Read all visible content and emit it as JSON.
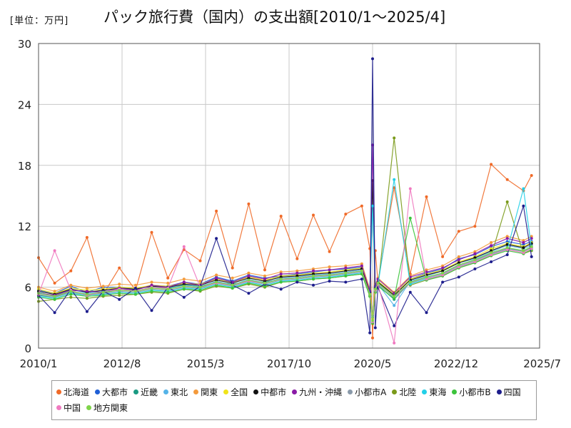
{
  "header": {
    "unit": "[単位：万円]",
    "title": "パック旅行費（国内）の支出額[2010/1～2025/4]"
  },
  "chart_data": {
    "type": "line",
    "ylim": [
      0,
      30
    ],
    "y_ticks": [
      0,
      6,
      12,
      18,
      24,
      30
    ],
    "y_tick_labels": [
      "0",
      "6",
      "12",
      "18",
      "24",
      "30"
    ],
    "x_range": [
      "2010-01",
      "2025-07"
    ],
    "x_ticks": [
      "2010-01",
      "2012-08",
      "2015-03",
      "2017-10",
      "2020-05",
      "2022-12",
      "2025-07"
    ],
    "x_tick_labels": [
      "2010/1",
      "2012/8",
      "2015/3",
      "2017/10",
      "2020/5",
      "2022/12",
      "2025/7"
    ],
    "grid": true,
    "legend_position": "bottom",
    "x": [
      "2010-01",
      "2010-07",
      "2011-01",
      "2011-07",
      "2012-01",
      "2012-07",
      "2013-01",
      "2013-07",
      "2014-01",
      "2014-07",
      "2015-01",
      "2015-07",
      "2016-01",
      "2016-07",
      "2017-01",
      "2017-07",
      "2018-01",
      "2018-07",
      "2019-01",
      "2019-07",
      "2020-01",
      "2020-04",
      "2020-05",
      "2020-06",
      "2020-07",
      "2021-01",
      "2021-07",
      "2022-01",
      "2022-07",
      "2023-01",
      "2023-07",
      "2024-01",
      "2024-07",
      "2025-01",
      "2025-04"
    ],
    "series": [
      {
        "name": "北海道",
        "color": "#f06a28",
        "values": [
          8.9,
          6.4,
          7.6,
          10.9,
          5.3,
          7.9,
          5.7,
          11.4,
          6.9,
          9.7,
          8.6,
          13.5,
          7.9,
          14.2,
          7.7,
          13.0,
          8.8,
          13.1,
          9.5,
          13.2,
          14.0,
          9.8,
          1.0,
          9.6,
          6.5,
          15.8,
          7.3,
          14.9,
          9.0,
          11.5,
          12.0,
          18.1,
          16.6,
          15.5,
          17.0
        ]
      },
      {
        "name": "大都市",
        "color": "#1f5fd6",
        "values": [
          5.7,
          5.4,
          6.1,
          5.5,
          6.0,
          6.0,
          5.8,
          6.2,
          6.1,
          6.5,
          6.3,
          7.0,
          6.6,
          7.2,
          6.9,
          7.1,
          7.3,
          7.5,
          7.7,
          7.8,
          8.0,
          5.5,
          3.2,
          5.8,
          6.5,
          5.2,
          6.8,
          7.4,
          7.8,
          8.8,
          9.2,
          10.0,
          10.5,
          10.2,
          10.5
        ]
      },
      {
        "name": "近畿",
        "color": "#1a9a82",
        "values": [
          5.2,
          5.0,
          5.6,
          5.3,
          5.4,
          5.8,
          5.6,
          6.0,
          5.9,
          6.2,
          6.1,
          6.5,
          6.3,
          6.6,
          6.5,
          6.8,
          6.9,
          7.1,
          7.2,
          7.4,
          7.6,
          5.2,
          3.0,
          5.6,
          6.2,
          4.8,
          6.5,
          7.0,
          7.4,
          8.2,
          8.7,
          9.3,
          9.8,
          9.6,
          9.9
        ]
      },
      {
        "name": "東北",
        "color": "#55b3e8",
        "values": [
          5.5,
          5.1,
          5.8,
          5.4,
          5.6,
          5.7,
          5.9,
          6.1,
          5.8,
          6.3,
          6.0,
          6.6,
          6.2,
          6.8,
          6.4,
          6.9,
          7.0,
          7.2,
          7.3,
          7.5,
          7.7,
          5.4,
          2.5,
          5.9,
          6.3,
          4.2,
          6.6,
          7.1,
          7.6,
          8.4,
          8.8,
          9.5,
          10.1,
          9.8,
          10.1
        ]
      },
      {
        "name": "関東",
        "color": "#f39a3c",
        "values": [
          6.0,
          5.6,
          6.2,
          5.9,
          6.1,
          6.3,
          6.2,
          6.5,
          6.4,
          6.8,
          6.6,
          7.2,
          6.9,
          7.4,
          7.1,
          7.5,
          7.6,
          7.8,
          8.0,
          8.1,
          8.3,
          5.8,
          2.8,
          6.2,
          6.9,
          5.5,
          7.1,
          7.7,
          8.1,
          9.0,
          9.5,
          10.4,
          11.0,
          10.6,
          11.0
        ]
      },
      {
        "name": "全国",
        "color": "#f0e41a",
        "values": [
          5.8,
          5.4,
          5.9,
          5.7,
          5.8,
          6.0,
          5.9,
          6.2,
          6.1,
          6.4,
          6.3,
          6.8,
          6.5,
          7.0,
          6.7,
          7.1,
          7.2,
          7.4,
          7.5,
          7.7,
          7.9,
          5.6,
          2.9,
          6.0,
          6.6,
          5.3,
          6.8,
          7.3,
          7.7,
          8.5,
          9.0,
          9.8,
          10.3,
          10.0,
          10.4
        ]
      },
      {
        "name": "中都市",
        "color": "#111111",
        "values": [
          5.6,
          5.3,
          5.8,
          5.5,
          5.7,
          5.9,
          5.8,
          6.1,
          6.0,
          6.3,
          6.2,
          6.7,
          6.4,
          6.9,
          6.6,
          7.0,
          7.1,
          7.3,
          7.4,
          7.6,
          7.8,
          5.5,
          16.5,
          5.9,
          6.5,
          5.2,
          6.7,
          7.2,
          7.6,
          8.4,
          8.9,
          9.6,
          10.2,
          9.9,
          10.3
        ]
      },
      {
        "name": "九州・沖縄",
        "color": "#8a1aa6",
        "values": [
          5.4,
          5.2,
          5.7,
          5.6,
          5.5,
          5.9,
          5.7,
          6.2,
          6.0,
          6.5,
          6.2,
          6.9,
          6.5,
          7.1,
          6.8,
          7.3,
          7.4,
          7.6,
          7.7,
          7.9,
          8.1,
          5.6,
          20.0,
          6.1,
          6.8,
          5.4,
          7.0,
          7.5,
          7.9,
          8.7,
          9.3,
          10.1,
          10.8,
          10.4,
          10.8
        ]
      },
      {
        "name": "小都市A",
        "color": "#8a9aaa",
        "values": [
          5.3,
          5.0,
          5.5,
          5.2,
          5.4,
          5.6,
          5.5,
          5.8,
          5.7,
          6.0,
          5.9,
          6.4,
          6.1,
          6.6,
          6.3,
          6.7,
          6.8,
          7.0,
          7.1,
          7.3,
          7.5,
          5.3,
          2.6,
          5.7,
          6.3,
          5.0,
          6.4,
          6.9,
          7.3,
          8.1,
          8.6,
          9.3,
          9.8,
          9.5,
          9.9
        ]
      },
      {
        "name": "北陸",
        "color": "#7a9a1a",
        "values": [
          4.6,
          4.8,
          5.0,
          4.9,
          5.1,
          5.2,
          5.3,
          5.5,
          5.4,
          5.8,
          5.6,
          6.1,
          5.9,
          6.3,
          6.0,
          6.5,
          6.6,
          6.8,
          6.9,
          7.1,
          7.3,
          5.1,
          2.4,
          5.5,
          6.0,
          20.7,
          6.2,
          6.7,
          7.1,
          7.9,
          8.4,
          9.1,
          14.4,
          9.3,
          9.6
        ]
      },
      {
        "name": "東海",
        "color": "#22d0e8",
        "values": [
          5.1,
          4.9,
          5.4,
          5.2,
          5.3,
          5.5,
          5.4,
          5.7,
          5.6,
          5.9,
          5.8,
          6.3,
          6.0,
          6.5,
          6.2,
          6.6,
          6.7,
          6.9,
          7.0,
          7.2,
          7.4,
          5.2,
          14.0,
          5.6,
          6.2,
          16.6,
          6.3,
          6.8,
          7.2,
          8.0,
          8.5,
          9.2,
          9.7,
          15.7,
          9.8
        ]
      },
      {
        "name": "小都市B",
        "color": "#3cc43c",
        "values": [
          5.0,
          4.8,
          5.3,
          5.1,
          5.2,
          5.4,
          5.3,
          5.6,
          5.5,
          5.8,
          5.7,
          6.2,
          5.9,
          6.4,
          6.1,
          6.5,
          6.6,
          6.8,
          6.9,
          7.1,
          7.3,
          5.1,
          2.5,
          5.5,
          6.1,
          4.9,
          12.8,
          6.7,
          7.1,
          7.9,
          8.4,
          9.1,
          9.6,
          9.3,
          9.7
        ]
      },
      {
        "name": "四国",
        "color": "#1c1c8c",
        "values": [
          5.2,
          3.5,
          5.8,
          3.6,
          5.6,
          4.8,
          5.9,
          3.7,
          6.0,
          5.0,
          6.1,
          10.8,
          6.2,
          5.4,
          6.3,
          5.8,
          6.5,
          6.2,
          6.6,
          6.5,
          6.8,
          1.5,
          28.5,
          2.0,
          6.0,
          2.2,
          5.5,
          3.5,
          6.5,
          7.0,
          7.8,
          8.5,
          9.2,
          14.0,
          9.0
        ]
      },
      {
        "name": "中国",
        "color": "#f07ac0",
        "values": [
          5.3,
          9.6,
          5.7,
          5.2,
          5.5,
          5.8,
          5.6,
          6.0,
          5.9,
          10.0,
          6.0,
          6.4,
          6.2,
          6.6,
          6.4,
          6.8,
          6.9,
          7.1,
          7.2,
          7.4,
          7.6,
          5.3,
          2.6,
          5.7,
          6.3,
          0.5,
          15.7,
          6.8,
          7.2,
          8.0,
          8.5,
          9.2,
          9.7,
          9.4,
          9.8
        ]
      },
      {
        "name": "地方関東",
        "color": "#7fd44a",
        "values": [
          5.4,
          5.1,
          5.6,
          5.3,
          5.5,
          5.7,
          5.6,
          5.9,
          5.8,
          6.1,
          6.0,
          6.5,
          6.2,
          6.7,
          6.4,
          6.8,
          6.9,
          7.1,
          7.2,
          7.4,
          7.6,
          5.3,
          2.7,
          5.8,
          6.4,
          5.1,
          6.5,
          7.0,
          7.4,
          8.2,
          8.7,
          9.4,
          9.9,
          9.6,
          10.0
        ]
      }
    ]
  }
}
